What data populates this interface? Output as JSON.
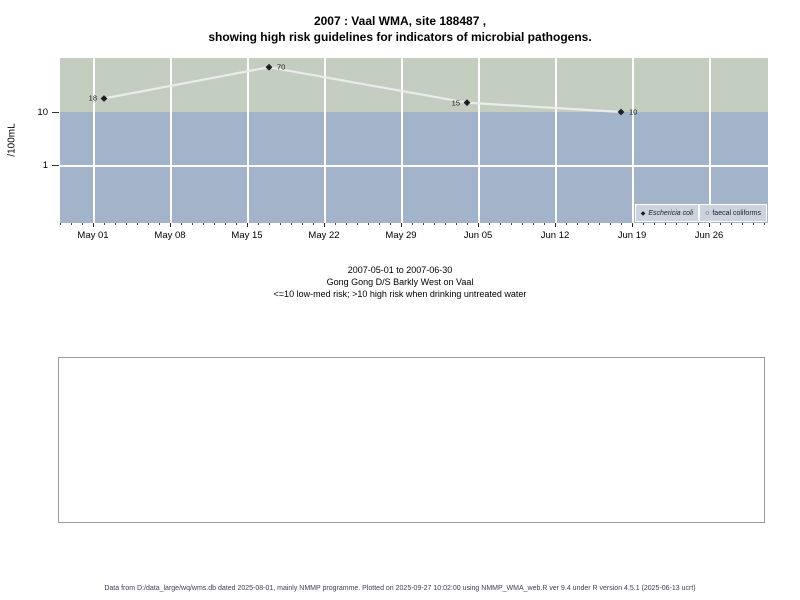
{
  "title": {
    "line1": "2007 : Vaal WMA, site 188487 ,",
    "line2": "showing high risk guidelines for indicators of microbial pathogens."
  },
  "chart_data": {
    "type": "line",
    "title": "2007 : Vaal WMA, site 188487 , showing high risk guidelines for indicators of microbial pathogens.",
    "ylabel": "/100mL",
    "y_scale": "log10",
    "y_ticks": [
      10,
      1
    ],
    "ylim_approx": [
      0.08,
      110
    ],
    "x_ticks": [
      "May 01",
      "May 08",
      "May 15",
      "May 22",
      "May 29",
      "Jun 05",
      "Jun 12",
      "Jun 19",
      "Jun 26"
    ],
    "x_range": [
      "2007-04-28",
      "2007-07-01"
    ],
    "grid": true,
    "legend_position": "bottom-right",
    "risk_bands": [
      {
        "label": "high risk (>10)",
        "color": "#c4cec0"
      },
      {
        "label": "low-med risk (<=10)",
        "color": "#a2b3ca"
      }
    ],
    "series": [
      {
        "name": "Eschericia coli",
        "marker": "filled-diamond",
        "points": [
          {
            "date": "2007-05-02",
            "value": 18,
            "label_side": "left"
          },
          {
            "date": "2007-05-17",
            "value": 70,
            "label_side": "right"
          },
          {
            "date": "2007-06-04",
            "value": 15,
            "label_side": "left"
          },
          {
            "date": "2007-06-18",
            "value": 10,
            "label_side": "right"
          }
        ]
      },
      {
        "name": "faecal coliforms",
        "marker": "open-circle",
        "points": []
      }
    ]
  },
  "subtitle": {
    "line1": "2007-05-01 to 2007-06-30",
    "line2": "Gong Gong D/S Barkly West on Vaal",
    "line3": "<=10 low-med risk; >10 high risk when drinking untreated water"
  },
  "footer": "Data from D:/data_large/wq/wms.db dated 2025-08-01, mainly NMMP programme. Plotted on 2025-09-27 10:02:00 using NMMP_WMA_web.R ver 9.4 under R version 4.5.1 (2025-06-13 ucrt)",
  "colors": {
    "band_high_risk": "#c4cec0",
    "band_low_med_risk": "#a2b3ca",
    "series_line": "#ebebeb",
    "point_marker": "#1f1f1f",
    "gridline": "#ffffff",
    "legend_cell_bg": "#cbd3de",
    "footer_text": "#3c3c5e"
  }
}
